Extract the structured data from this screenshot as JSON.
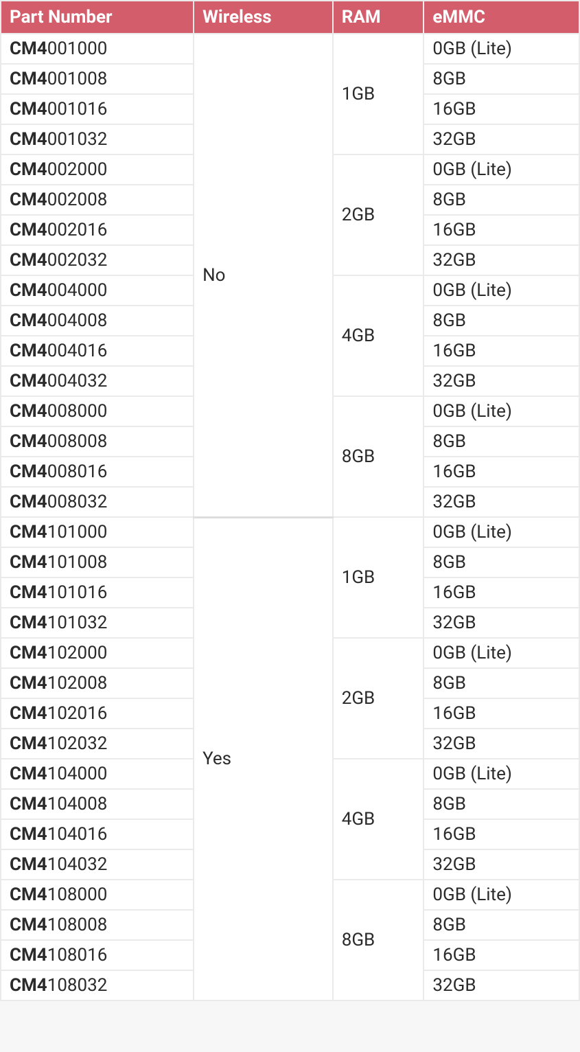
{
  "table": {
    "header_bg": "#d45d6b",
    "header_fg": "#ffffff",
    "cell_border": "#eaeaea",
    "text_color": "#2b2b2b",
    "font_size_pt": 20,
    "columns": [
      "Part Number",
      "Wireless",
      "RAM",
      "eMMC"
    ],
    "part_prefix": "CM4",
    "wireless_groups": [
      {
        "label": "No",
        "ram_groups": [
          {
            "label": "1GB",
            "rows": [
              {
                "part_suffix": "001000",
                "emmc": "0GB (Lite)"
              },
              {
                "part_suffix": "001008",
                "emmc": "8GB"
              },
              {
                "part_suffix": "001016",
                "emmc": "16GB"
              },
              {
                "part_suffix": "001032",
                "emmc": "32GB"
              }
            ]
          },
          {
            "label": "2GB",
            "rows": [
              {
                "part_suffix": "002000",
                "emmc": "0GB (Lite)"
              },
              {
                "part_suffix": "002008",
                "emmc": "8GB"
              },
              {
                "part_suffix": "002016",
                "emmc": "16GB"
              },
              {
                "part_suffix": "002032",
                "emmc": "32GB"
              }
            ]
          },
          {
            "label": "4GB",
            "rows": [
              {
                "part_suffix": "004000",
                "emmc": "0GB (Lite)"
              },
              {
                "part_suffix": "004008",
                "emmc": "8GB"
              },
              {
                "part_suffix": "004016",
                "emmc": "16GB"
              },
              {
                "part_suffix": "004032",
                "emmc": "32GB"
              }
            ]
          },
          {
            "label": "8GB",
            "rows": [
              {
                "part_suffix": "008000",
                "emmc": "0GB (Lite)"
              },
              {
                "part_suffix": "008008",
                "emmc": "8GB"
              },
              {
                "part_suffix": "008016",
                "emmc": "16GB"
              },
              {
                "part_suffix": "008032",
                "emmc": "32GB"
              }
            ]
          }
        ]
      },
      {
        "label": "Yes",
        "ram_groups": [
          {
            "label": "1GB",
            "rows": [
              {
                "part_suffix": "101000",
                "emmc": "0GB (Lite)"
              },
              {
                "part_suffix": "101008",
                "emmc": "8GB"
              },
              {
                "part_suffix": "101016",
                "emmc": "16GB"
              },
              {
                "part_suffix": "101032",
                "emmc": "32GB"
              }
            ]
          },
          {
            "label": "2GB",
            "rows": [
              {
                "part_suffix": "102000",
                "emmc": "0GB (Lite)"
              },
              {
                "part_suffix": "102008",
                "emmc": "8GB"
              },
              {
                "part_suffix": "102016",
                "emmc": "16GB"
              },
              {
                "part_suffix": "102032",
                "emmc": "32GB"
              }
            ]
          },
          {
            "label": "4GB",
            "rows": [
              {
                "part_suffix": "104000",
                "emmc": "0GB (Lite)"
              },
              {
                "part_suffix": "104008",
                "emmc": "8GB"
              },
              {
                "part_suffix": "104016",
                "emmc": "16GB"
              },
              {
                "part_suffix": "104032",
                "emmc": "32GB"
              }
            ]
          },
          {
            "label": "8GB",
            "rows": [
              {
                "part_suffix": "108000",
                "emmc": "0GB (Lite)"
              },
              {
                "part_suffix": "108008",
                "emmc": "8GB"
              },
              {
                "part_suffix": "108016",
                "emmc": "16GB"
              },
              {
                "part_suffix": "108032",
                "emmc": "32GB"
              }
            ]
          }
        ]
      }
    ]
  }
}
